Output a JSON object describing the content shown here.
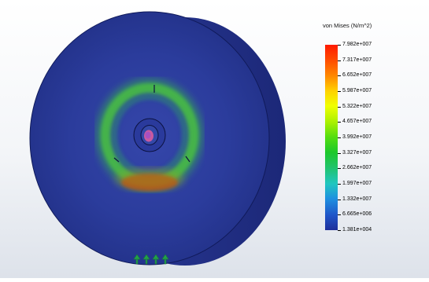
{
  "legend": {
    "title": "von Mises (N/m^2)",
    "labels": [
      "7.982e+007",
      "7.317e+007",
      "6.652e+007",
      "5.987e+007",
      "5.322e+007",
      "4.657e+007",
      "3.992e+007",
      "3.327e+007",
      "2.662e+007",
      "1.997e+007",
      "1.332e+007",
      "6.665e+006",
      "1.381e+004"
    ],
    "colors": {
      "max": "#ff1a00",
      "mid": "#52dd10",
      "min": "#1e2f9a"
    }
  },
  "model": {
    "body_color": "#2a3b9a",
    "rim_color": "#24328a",
    "stress_ring_color": "#3cbc38",
    "hot_spot_color": "#c83a16",
    "fixture_color": "#2aa84a",
    "icons": [
      "fixture-arrow-icon"
    ]
  }
}
